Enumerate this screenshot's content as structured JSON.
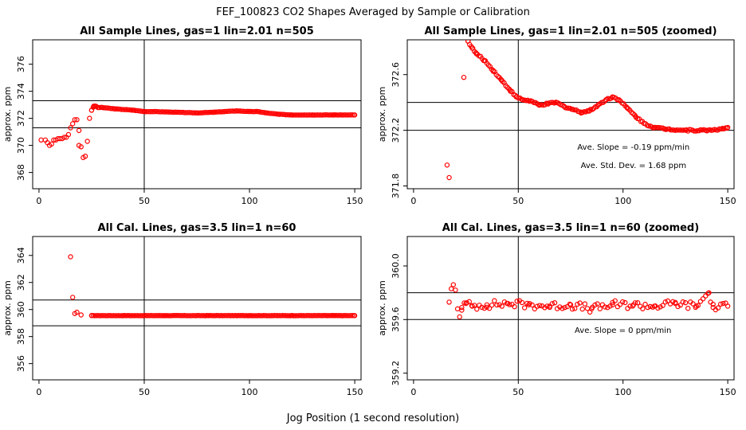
{
  "figure": {
    "title": "FEF_100823  CO2 Shapes Averaged by Sample or Calibration",
    "xlabel": "Jog Position (1 second resolution)",
    "point_color": "#ff0000",
    "line_color": "#000000"
  },
  "chart_data": [
    {
      "type": "scatter",
      "title": "All Sample Lines, gas=1 lin=2.01 n=505",
      "ylabel": "approx. ppm",
      "xlim": [
        -3,
        153
      ],
      "ylim": [
        366.8,
        377.8
      ],
      "xticks": [
        0,
        50,
        100,
        150
      ],
      "yticks": [
        368,
        370,
        372,
        374,
        376
      ],
      "vline_x": 50,
      "hlines_y": [
        371.3,
        373.3
      ],
      "annotations": [],
      "segments": [
        [
          1,
          370.4
        ],
        [
          3,
          370.4
        ],
        [
          4,
          370.2
        ],
        [
          5,
          370.0
        ],
        [
          6,
          370.1
        ],
        [
          7,
          370.4
        ],
        [
          8,
          370.4
        ],
        [
          9,
          370.5
        ],
        [
          10,
          370.5
        ],
        [
          11,
          370.5
        ],
        [
          12,
          370.6
        ],
        [
          13,
          370.6
        ],
        [
          14,
          370.8
        ],
        [
          15,
          371.3
        ],
        [
          16,
          371.6
        ],
        [
          17,
          371.9
        ],
        [
          18,
          371.9
        ],
        [
          19,
          370.0
        ],
        [
          19,
          371.1
        ],
        [
          20,
          369.9
        ],
        [
          21,
          369.1
        ],
        [
          22,
          369.2
        ],
        [
          23,
          370.3
        ],
        [
          24,
          372.0
        ],
        [
          25,
          372.6
        ],
        [
          26,
          372.9
        ],
        [
          27,
          372.9
        ],
        [
          28,
          372.8
        ],
        [
          30,
          372.8
        ],
        [
          36,
          372.7
        ],
        [
          45,
          372.6
        ],
        [
          50,
          372.5
        ],
        [
          55,
          372.5
        ],
        [
          65,
          372.45
        ],
        [
          75,
          372.4
        ],
        [
          83,
          372.45
        ],
        [
          88,
          372.5
        ],
        [
          94,
          372.55
        ],
        [
          100,
          372.5
        ],
        [
          104,
          372.5
        ],
        [
          108,
          372.4
        ],
        [
          114,
          372.3
        ],
        [
          120,
          372.25
        ],
        [
          130,
          372.25
        ],
        [
          140,
          372.25
        ],
        [
          150,
          372.25
        ]
      ]
    },
    {
      "type": "scatter",
      "title": "All Sample Lines, gas=1 lin=2.01 n=505 (zoomed)",
      "ylabel": "approx. ppm",
      "xlim": [
        -3,
        153
      ],
      "ylim": [
        371.78,
        372.85
      ],
      "xticks": [
        0,
        50,
        100,
        150
      ],
      "yticks": [
        371.8,
        372.2,
        372.6
      ],
      "vline_x": 50,
      "hlines_y": [
        372.2,
        372.4
      ],
      "annotations": [
        {
          "text": "Ave. Slope =  -0.19  ppm/min",
          "x": 105,
          "y": 372.06
        },
        {
          "text": "Ave. Std. Dev. =  1.68  ppm",
          "x": 105,
          "y": 371.93
        }
      ],
      "segments": [
        [
          16,
          371.95
        ],
        [
          17,
          371.86
        ],
        [
          24,
          372.58
        ],
        [
          26,
          372.84
        ],
        [
          28,
          372.79
        ],
        [
          30,
          372.75
        ],
        [
          34,
          372.7
        ],
        [
          38,
          372.63
        ],
        [
          42,
          372.56
        ],
        [
          46,
          372.49
        ],
        [
          49,
          372.44
        ],
        [
          52,
          372.42
        ],
        [
          56,
          372.41
        ],
        [
          60,
          372.38
        ],
        [
          64,
          372.39
        ],
        [
          68,
          372.4
        ],
        [
          72,
          372.37
        ],
        [
          76,
          372.35
        ],
        [
          80,
          372.33
        ],
        [
          84,
          372.34
        ],
        [
          88,
          372.38
        ],
        [
          92,
          372.42
        ],
        [
          95,
          372.44
        ],
        [
          98,
          372.42
        ],
        [
          102,
          372.36
        ],
        [
          106,
          372.3
        ],
        [
          110,
          372.25
        ],
        [
          115,
          372.22
        ],
        [
          120,
          372.21
        ],
        [
          130,
          372.2
        ],
        [
          140,
          372.2
        ],
        [
          148,
          372.21
        ],
        [
          150,
          372.22
        ]
      ]
    },
    {
      "type": "scatter",
      "title": "All Cal. Lines, gas=3.5 lin=1 n=60",
      "ylabel": "approx. ppm",
      "xlim": [
        -3,
        153
      ],
      "ylim": [
        354.8,
        365.4
      ],
      "xticks": [
        0,
        50,
        100,
        150
      ],
      "yticks": [
        356,
        358,
        360,
        362,
        364
      ],
      "vline_x": 50,
      "hlines_y": [
        358.8,
        360.7
      ],
      "annotations": [],
      "segments": [
        [
          15,
          363.9
        ],
        [
          16,
          360.9
        ],
        [
          17,
          359.7
        ],
        [
          18,
          359.8
        ],
        [
          20,
          359.6
        ],
        [
          25,
          359.55
        ],
        [
          40,
          359.55
        ],
        [
          60,
          359.55
        ],
        [
          80,
          359.55
        ],
        [
          100,
          359.55
        ],
        [
          120,
          359.55
        ],
        [
          140,
          359.55
        ],
        [
          150,
          359.55
        ]
      ]
    },
    {
      "type": "scatter",
      "title": "All Cal. Lines, gas=3.5 lin=1 n=60 (zoomed)",
      "ylabel": "approx. ppm",
      "xlim": [
        -3,
        153
      ],
      "ylim": [
        359.15,
        360.22
      ],
      "xticks": [
        0,
        50,
        100,
        150
      ],
      "yticks": [
        359.2,
        359.6,
        360.0
      ],
      "vline_x": 50,
      "hlines_y": [
        359.6,
        359.8
      ],
      "annotations": [
        {
          "text": "Ave. Slope =  0  ppm/min",
          "x": 100,
          "y": 359.5
        }
      ],
      "segments": [
        [
          17,
          359.73
        ],
        [
          18,
          359.83
        ],
        [
          19,
          359.86
        ],
        [
          20,
          359.82
        ],
        [
          21,
          359.68
        ],
        [
          22,
          359.62
        ],
        [
          23,
          359.69
        ],
        [
          25,
          359.72
        ],
        [
          28,
          359.7
        ],
        [
          35,
          359.71
        ],
        [
          45,
          359.72
        ],
        [
          55,
          359.71
        ],
        [
          65,
          359.7
        ],
        [
          75,
          359.71
        ],
        [
          85,
          359.68
        ],
        [
          95,
          359.71
        ],
        [
          105,
          359.71
        ],
        [
          115,
          359.7
        ],
        [
          125,
          359.72
        ],
        [
          135,
          359.7
        ],
        [
          141,
          359.8
        ],
        [
          143,
          359.69
        ],
        [
          150,
          359.7
        ]
      ]
    }
  ]
}
